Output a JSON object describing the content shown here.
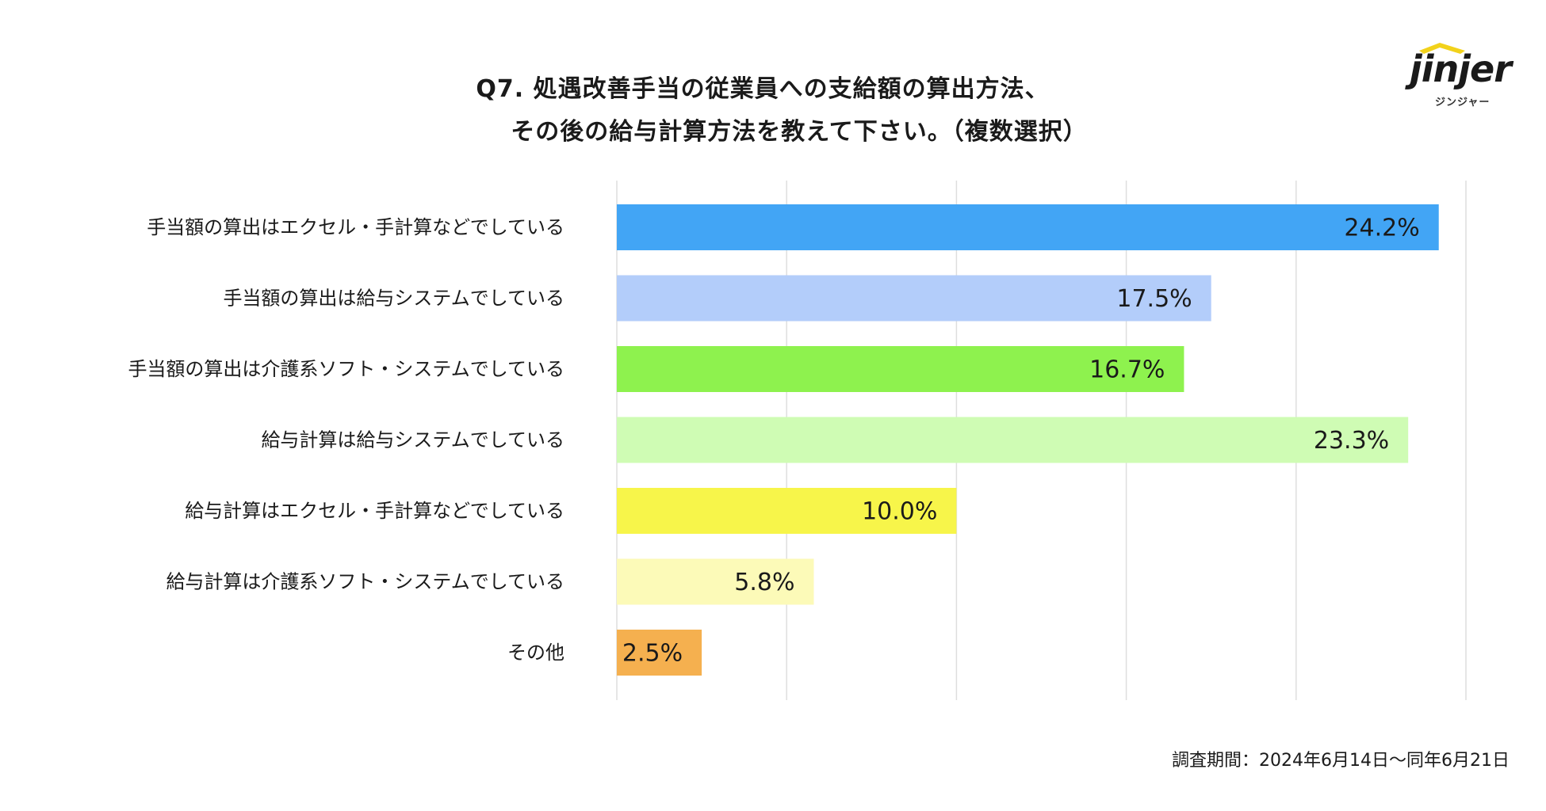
{
  "title": {
    "line1": "Q7. 処遇改善手当の従業員への支給額の算出方法、",
    "line2": "その後の給与計算方法を教えて下さい。（複数選択）"
  },
  "logo": {
    "word": "jinjer",
    "subtitle": "ジンジャー"
  },
  "footnote": "調査期間：2024年6月14日〜同年6月21日",
  "chart_data": {
    "type": "bar",
    "orientation": "horizontal",
    "categories": [
      "手当額の算出はエクセル・手計算などでしている",
      "手当額の算出は給与システムでしている",
      "手当額の算出は介護系ソフト・システムでしている",
      "給与計算は給与システムでしている",
      "給与計算はエクセル・手計算などでしている",
      "給与計算は介護系ソフト・システムでしている",
      "その他"
    ],
    "values": [
      24.2,
      17.5,
      16.7,
      23.3,
      10.0,
      5.8,
      2.5
    ],
    "labels": [
      "24.2%",
      "17.5%",
      "16.7%",
      "23.3%",
      "10.0%",
      "5.8%",
      "2.5%"
    ],
    "colors": [
      "#42a5f5",
      "#b3cdfa",
      "#8ef24e",
      "#cffcb4",
      "#f7f54a",
      "#fcfab8",
      "#f5b04f"
    ],
    "xlim": [
      0,
      25
    ],
    "grid": true,
    "gridline_count": 5,
    "legend": "none"
  }
}
